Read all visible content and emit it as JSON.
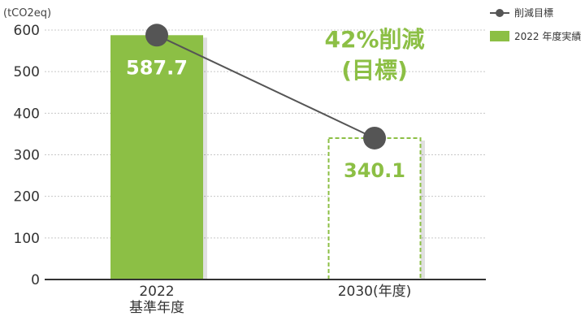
{
  "chart_data": {
    "type": "bar",
    "unit_label": "(tCO2eq)",
    "ylim": [
      0,
      600
    ],
    "yticks": [
      0,
      100,
      200,
      300,
      400,
      500,
      600
    ],
    "grid": true,
    "legend_position": "top-right",
    "categories": [
      {
        "lines": [
          "2022",
          "基準年度"
        ]
      },
      {
        "lines": [
          "2030(年度)"
        ]
      }
    ],
    "series": [
      {
        "name": "2022 年度実績",
        "kind": "bar",
        "style": "solid",
        "color": "#8cbf45",
        "values": [
          587.7,
          null
        ],
        "labels": [
          "587.7",
          ""
        ]
      },
      {
        "name": "",
        "kind": "bar",
        "style": "dashed",
        "color": "#8cbf45",
        "values": [
          null,
          340.1
        ],
        "labels": [
          "",
          "340.1"
        ]
      },
      {
        "name": "削減目標",
        "kind": "line",
        "color": "#555555",
        "values": [
          587.7,
          340.1
        ]
      }
    ],
    "annotation": {
      "lines": [
        "42%削減",
        "(目標)"
      ],
      "color": "#8cbf45"
    }
  }
}
